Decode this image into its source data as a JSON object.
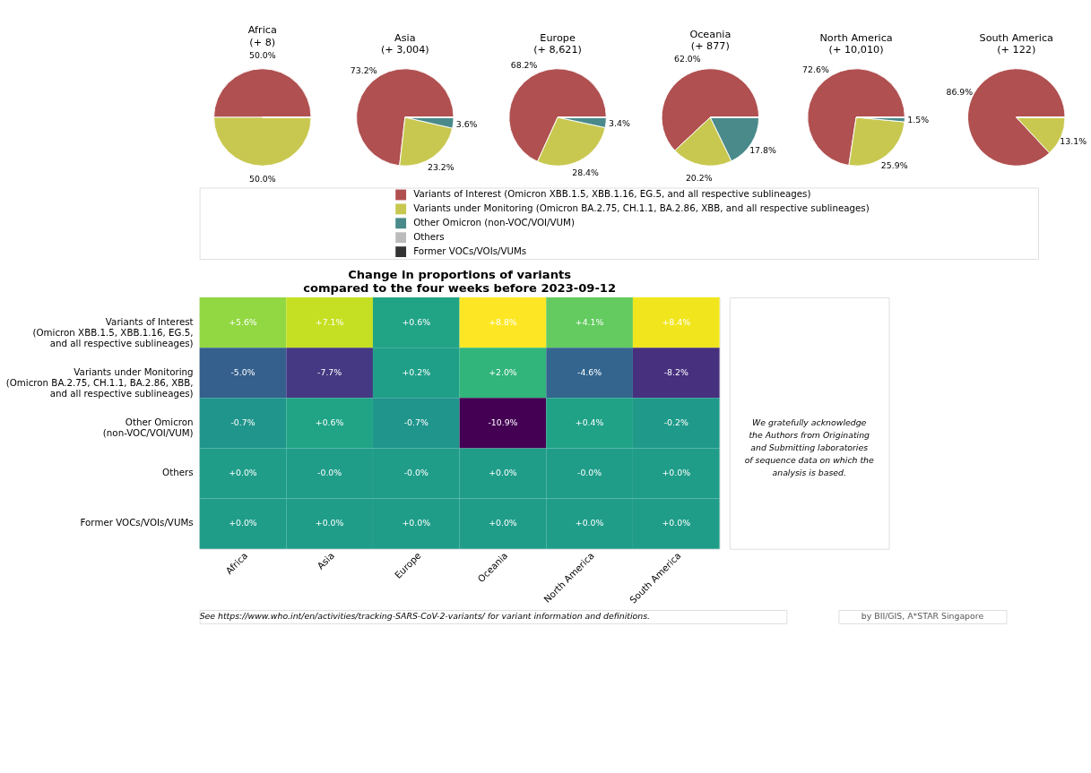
{
  "chart_data": [
    {
      "type": "pie",
      "categories": [
        "Variants of Interest (Omicron XBB.1.5, XBB.1.16, EG.5, and all respective sublineages)",
        "Variants under Monitoring (Omicron BA.2.75, CH.1.1, BA.2.86, XBB, and all respective sublineages)",
        "Other Omicron (non-VOC/VOI/VUM)",
        "Others",
        "Former VOCs/VOIs/VUMs"
      ],
      "colors": [
        "#b05050",
        "#c8c850",
        "#4a8a8a",
        "#bbbbbb",
        "#333333"
      ],
      "legend": "bottom",
      "series": [
        {
          "name": "Africa\n(+ 8)",
          "values": [
            50.0,
            50.0,
            0,
            0,
            0
          ],
          "value_labels": [
            "50.0%",
            "50.0%",
            null,
            null,
            null
          ]
        },
        {
          "name": "Asia\n(+ 3,004)",
          "values": [
            73.2,
            23.2,
            3.6,
            0,
            0
          ],
          "value_labels": [
            "73.2%",
            "23.2%",
            "3.6%",
            null,
            null
          ]
        },
        {
          "name": "Europe\n(+ 8,621)",
          "values": [
            68.2,
            28.4,
            3.4,
            0,
            0
          ],
          "value_labels": [
            "68.2%",
            "28.4%",
            "3.4%",
            null,
            null
          ]
        },
        {
          "name": "Oceania\n(+ 877)",
          "values": [
            62.0,
            20.2,
            17.8,
            0,
            0
          ],
          "value_labels": [
            "62.0%",
            "20.2%",
            "17.8%",
            null,
            null
          ]
        },
        {
          "name": "North America\n(+ 10,010)",
          "values": [
            72.6,
            25.9,
            1.5,
            0,
            0
          ],
          "value_labels": [
            "72.6%",
            "25.9%",
            "1.5%",
            null,
            null
          ]
        },
        {
          "name": "South America\n(+ 122)",
          "values": [
            86.9,
            13.1,
            0,
            0,
            0
          ],
          "value_labels": [
            "86.9%",
            "13.1%",
            null,
            null,
            null
          ]
        }
      ]
    },
    {
      "type": "heatmap",
      "title": "Change in proportions of variants\ncompared to the four weeks before 2023-09-12",
      "categories": [
        "Africa",
        "Asia",
        "Europe",
        "Oceania",
        "North America",
        "South America"
      ],
      "y_categories": [
        "Variants of Interest\n(Omicron XBB.1.5, XBB.1.16, EG.5,\nand all respective sublineages)",
        "Variants under Monitoring\n(Omicron BA.2.75, CH.1.1, BA.2.86, XBB,\nand all respective sublineages)",
        "Other Omicron\n(non-VOC/VOI/VUM)",
        "Others",
        "Former VOCs/VOIs/VUMs"
      ],
      "cells": [
        [
          5.6,
          7.1,
          0.6,
          8.8,
          4.1,
          8.4
        ],
        [
          -5.0,
          -7.7,
          0.2,
          2.0,
          -4.6,
          -8.2
        ],
        [
          -0.7,
          0.6,
          -0.7,
          -10.9,
          0.4,
          -0.2
        ],
        [
          0.0,
          -0.0,
          -0.0,
          0.0,
          -0.0,
          0.0
        ],
        [
          0.0,
          0.0,
          0.0,
          0.0,
          0.0,
          0.0
        ]
      ],
      "cell_labels": [
        [
          "+5.6%",
          "+7.1%",
          "+0.6%",
          "+8.8%",
          "+4.1%",
          "+8.4%"
        ],
        [
          "-5.0%",
          "-7.7%",
          "+0.2%",
          "+2.0%",
          "-4.6%",
          "-8.2%"
        ],
        [
          "-0.7%",
          "+0.6%",
          "-0.7%",
          "-10.9%",
          "+0.4%",
          "-0.2%"
        ],
        [
          "+0.0%",
          "-0.0%",
          "-0.0%",
          "+0.0%",
          "-0.0%",
          "+0.0%"
        ],
        [
          "+0.0%",
          "+0.0%",
          "+0.0%",
          "+0.0%",
          "+0.0%",
          "+0.0%"
        ]
      ],
      "annotations": [
        "We gratefully acknowledge\nthe Authors from Originating\nand Submitting laboratories\nof sequence data on which the\nanalysis is based.",
        "See https://www.who.int/en/activities/tracking-SARS-CoV-2-variants/ for variant information and definitions.",
        "by BII/GIS, A*STAR Singapore"
      ]
    }
  ]
}
